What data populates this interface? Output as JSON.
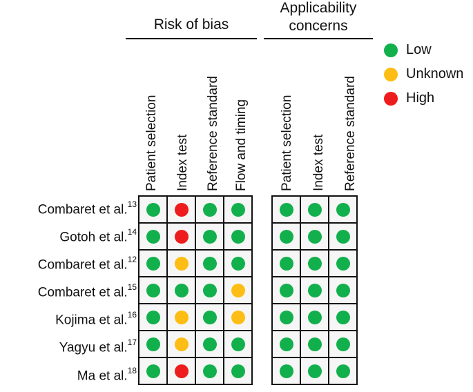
{
  "groups": {
    "risk_of_bias": "Risk of bias",
    "applicability_line1": "Applicability",
    "applicability_line2": "concerns"
  },
  "columns": {
    "risk": [
      "Patient selection",
      "Index test",
      "Reference standard",
      "Flow and timing"
    ],
    "applicability": [
      "Patient selection",
      "Index test",
      "Reference standard"
    ]
  },
  "studies": [
    {
      "name": "Combaret et al.",
      "ref": "13",
      "risk": [
        "low",
        "high",
        "low",
        "low"
      ],
      "applicability": [
        "low",
        "low",
        "low"
      ]
    },
    {
      "name": "Gotoh et al.",
      "ref": "14",
      "risk": [
        "low",
        "high",
        "low",
        "low"
      ],
      "applicability": [
        "low",
        "low",
        "low"
      ]
    },
    {
      "name": "Combaret et al.",
      "ref": "12",
      "risk": [
        "low",
        "unknown",
        "low",
        "low"
      ],
      "applicability": [
        "low",
        "low",
        "low"
      ]
    },
    {
      "name": "Combaret et al.",
      "ref": "15",
      "risk": [
        "low",
        "low",
        "low",
        "unknown"
      ],
      "applicability": [
        "low",
        "low",
        "low"
      ]
    },
    {
      "name": "Kojima et al.",
      "ref": "16",
      "risk": [
        "low",
        "unknown",
        "low",
        "unknown"
      ],
      "applicability": [
        "low",
        "low",
        "low"
      ]
    },
    {
      "name": "Yagyu et al.",
      "ref": "17",
      "risk": [
        "low",
        "unknown",
        "low",
        "low"
      ],
      "applicability": [
        "low",
        "low",
        "low"
      ]
    },
    {
      "name": "Ma et al.",
      "ref": "18",
      "risk": [
        "low",
        "high",
        "low",
        "low"
      ],
      "applicability": [
        "low",
        "low",
        "low"
      ]
    }
  ],
  "legend": [
    {
      "key": "low",
      "label": "Low",
      "color": "#12b04c"
    },
    {
      "key": "unknown",
      "label": "Unknown",
      "color": "#fdbd14"
    },
    {
      "key": "high",
      "label": "High",
      "color": "#ee1c1c"
    }
  ]
}
